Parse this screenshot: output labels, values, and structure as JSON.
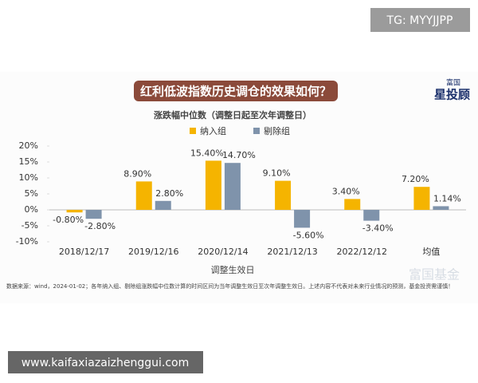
{
  "overlay_tag": "TG: MYYJJPP",
  "logo": [
    "富国",
    "星投顾"
  ],
  "watermark": "富国基金",
  "footnote": "数据来源：wind，2024-01-02；各年纳入组、剔除组涨跌幅中位数计算的时间区间为当年调整生效日至次年调整生效日。上述内容不代表对未来行业情况的预测，基金投资需谨慎！",
  "website": "www.kaifaxiazaizhenggui.com",
  "chart_data": {
    "type": "bar",
    "title": "红利低波指数历史调仓的效果如何？",
    "subtitle": "涨跌幅中位数（调整日起至次年调整日）",
    "x_label": "调整生效日",
    "categories": [
      "2018/12/17",
      "2019/12/16",
      "2020/12/14",
      "2021/12/13",
      "2022/12/12",
      "均值"
    ],
    "series": [
      {
        "name": "纳入组",
        "color": "#f5b400",
        "values": [
          -0.8,
          8.9,
          15.4,
          9.1,
          3.4,
          7.2
        ],
        "value_labels": [
          "-0.80%",
          "8.90%",
          "15.40%",
          "9.10%",
          "3.40%",
          "7.20%"
        ]
      },
      {
        "name": "剔除组",
        "color": "#7f93ab",
        "values": [
          -2.8,
          2.8,
          14.7,
          -5.6,
          -3.4,
          1.14
        ],
        "value_labels": [
          "-2.80%",
          "2.80%",
          "14.70%",
          "-5.60%",
          "-3.40%",
          "1.14%"
        ]
      }
    ],
    "ylim": [
      -10,
      20
    ],
    "yticks": [
      {
        "value": -10,
        "label": "-10%"
      },
      {
        "value": -5,
        "label": "-5%"
      },
      {
        "value": 0,
        "label": "0%"
      },
      {
        "value": 5,
        "label": "5%"
      },
      {
        "value": 10,
        "label": "10%"
      },
      {
        "value": 15,
        "label": "15%"
      },
      {
        "value": 20,
        "label": "20%"
      }
    ],
    "legend": "top"
  }
}
